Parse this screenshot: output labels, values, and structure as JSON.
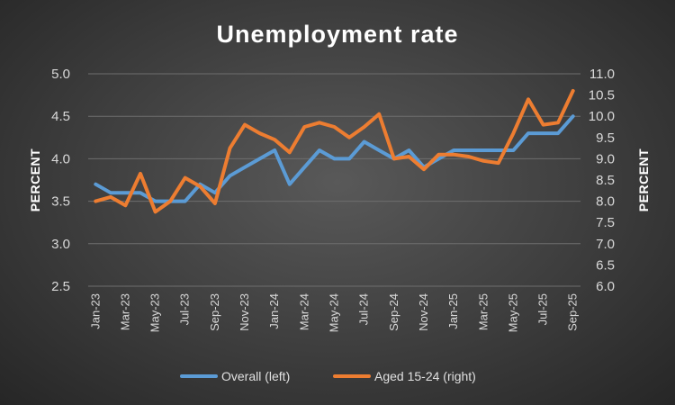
{
  "chart_data": {
    "type": "line",
    "title": "Unemployment rate",
    "ylabel_left": "PERCENT",
    "ylabel_right": "PERCENT",
    "xlabel": "",
    "ylim_left": [
      2.5,
      5.0
    ],
    "yticks_left": [
      "2.5",
      "3.0",
      "3.5",
      "4.0",
      "4.5",
      "5.0"
    ],
    "ylim_right": [
      6.0,
      11.0
    ],
    "yticks_right": [
      "6.0",
      "6.5",
      "7.0",
      "7.5",
      "8.0",
      "8.5",
      "9.0",
      "9.5",
      "10.0",
      "10.5",
      "11.0"
    ],
    "x": [
      "Jan-23",
      "Feb-23",
      "Mar-23",
      "Apr-23",
      "May-23",
      "Jun-23",
      "Jul-23",
      "Aug-23",
      "Sep-23",
      "Oct-23",
      "Nov-23",
      "Dec-23",
      "Jan-24",
      "Feb-24",
      "Mar-24",
      "Apr-24",
      "May-24",
      "Jun-24",
      "Jul-24",
      "Aug-24",
      "Sep-24",
      "Oct-24",
      "Nov-24",
      "Dec-24",
      "Jan-25",
      "Feb-25",
      "Mar-25",
      "Apr-25",
      "May-25",
      "Jun-25",
      "Jul-25",
      "Aug-25",
      "Sep-25"
    ],
    "x_tick_labels": [
      "Jan-23",
      "Mar-23",
      "May-23",
      "Jul-23",
      "Sep-23",
      "Nov-23",
      "Jan-24",
      "Mar-24",
      "May-24",
      "Jul-24",
      "Sep-24",
      "Nov-24",
      "Jan-25",
      "Mar-25",
      "May-25",
      "Jul-25",
      "Sep-25"
    ],
    "grid": true,
    "legend_position": "bottom",
    "series": [
      {
        "name": "Overall (left)",
        "axis": "left",
        "color": "#5b9bd5",
        "values": [
          3.7,
          3.6,
          3.6,
          3.6,
          3.5,
          3.5,
          3.5,
          3.7,
          3.6,
          3.8,
          3.9,
          4.0,
          4.1,
          3.7,
          3.9,
          4.1,
          4.0,
          4.0,
          4.2,
          4.1,
          4.0,
          4.1,
          3.9,
          4.0,
          4.1,
          4.1,
          4.1,
          4.1,
          4.1,
          4.3,
          4.3,
          4.3,
          4.5
        ]
      },
      {
        "name": "Aged 15-24 (right)",
        "axis": "right",
        "color": "#ed7d31",
        "values": [
          8.0,
          8.1,
          7.9,
          8.65,
          7.75,
          8.0,
          8.55,
          8.35,
          7.95,
          9.25,
          9.8,
          9.6,
          9.45,
          9.15,
          9.75,
          9.85,
          9.75,
          9.5,
          9.75,
          10.05,
          9.0,
          9.05,
          8.75,
          9.1,
          9.1,
          9.05,
          8.95,
          8.9,
          9.6,
          10.4,
          9.8,
          9.85,
          10.6
        ]
      }
    ]
  }
}
